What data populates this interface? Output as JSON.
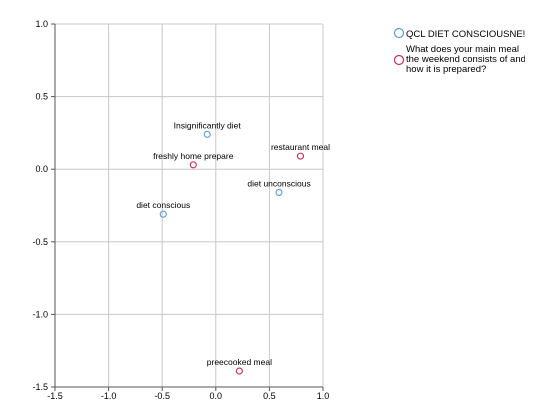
{
  "chart_data": {
    "type": "scatter",
    "title": "",
    "xlabel": "",
    "ylabel": "",
    "xlim": [
      -1.5,
      1.0
    ],
    "ylim": [
      -1.5,
      1.0
    ],
    "x_ticks": [
      "-1.5",
      "-1.0",
      "-0.5",
      "0.0",
      "0.5",
      "1.0"
    ],
    "y_ticks": [
      "1.0",
      "0.5",
      "0.0",
      "-0.5",
      "-1.0",
      "-1.5"
    ],
    "grid": true,
    "legend_position": "top-right",
    "series": [
      {
        "name": "QCL DIET CONSCIOUSNE!",
        "color": "#5b9bd5",
        "points": [
          {
            "label": "Insignificantly diet",
            "x": -0.08,
            "y": 0.24
          },
          {
            "label": "diet unconscious",
            "x": 0.59,
            "y": -0.16
          },
          {
            "label": "diet conscious",
            "x": -0.49,
            "y": -0.31
          }
        ]
      },
      {
        "name_lines": [
          "What does your main meal",
          "the weekend consists of and",
          "how it is prepared?"
        ],
        "color": "#c8294f",
        "points": [
          {
            "label": "freshly home prepare",
            "x": -0.21,
            "y": 0.03
          },
          {
            "label": "restaurant meal",
            "x": 0.79,
            "y": 0.09
          },
          {
            "label": "preecooked meal",
            "x": 0.22,
            "y": -1.39
          }
        ]
      }
    ]
  }
}
